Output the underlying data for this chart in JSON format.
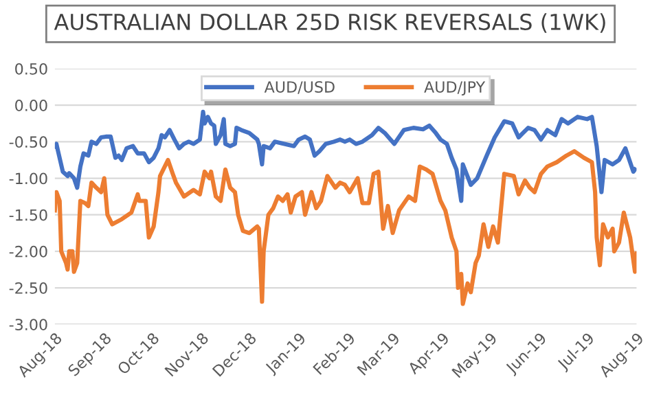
{
  "chart_data": {
    "type": "line",
    "title": "AUSTRALIAN DOLLAR 25D RISK REVERSALS (1WK)",
    "series": [
      {
        "name": "AUD/USD",
        "color": "#4472c4",
        "x": [
          "2018-08-01",
          "2018-08-02",
          "2018-08-03",
          "2018-08-06",
          "2018-08-09",
          "2018-08-10",
          "2018-08-13",
          "2018-08-15",
          "2018-08-17",
          "2018-08-19",
          "2018-08-22",
          "2018-08-24",
          "2018-08-27",
          "2018-08-30",
          "2018-09-02",
          "2018-09-05",
          "2018-09-08",
          "2018-09-10",
          "2018-09-12",
          "2018-09-15",
          "2018-09-19",
          "2018-09-22",
          "2018-09-26",
          "2018-09-29",
          "2018-10-02",
          "2018-10-05",
          "2018-10-07",
          "2018-10-09",
          "2018-10-12",
          "2018-10-15",
          "2018-10-18",
          "2018-10-21",
          "2018-10-24",
          "2018-10-27",
          "2018-10-31",
          "2018-11-02",
          "2018-11-03",
          "2018-11-05",
          "2018-11-07",
          "2018-11-09",
          "2018-11-10",
          "2018-11-13",
          "2018-11-15",
          "2018-11-16",
          "2018-11-19",
          "2018-11-22",
          "2018-11-23",
          "2018-11-26",
          "2018-12-01",
          "2018-12-06",
          "2018-12-07",
          "2018-12-09",
          "2018-12-10",
          "2018-12-14",
          "2018-12-17",
          "2018-12-23",
          "2018-12-29",
          "2019-01-01",
          "2019-01-05",
          "2019-01-08",
          "2019-01-11",
          "2019-01-14",
          "2019-01-18",
          "2019-01-23",
          "2019-01-27",
          "2019-01-30",
          "2019-02-02",
          "2019-02-06",
          "2019-02-10",
          "2019-02-16",
          "2019-02-20",
          "2019-02-24",
          "2019-03-02",
          "2019-03-08",
          "2019-03-14",
          "2019-03-20",
          "2019-03-24",
          "2019-03-28",
          "2019-03-31",
          "2019-04-04",
          "2019-04-07",
          "2019-04-10",
          "2019-04-13",
          "2019-04-14",
          "2019-04-19",
          "2019-04-23",
          "2019-04-29",
          "2019-05-04",
          "2019-05-10",
          "2019-05-15",
          "2019-05-19",
          "2019-05-25",
          "2019-05-29",
          "2019-06-02",
          "2019-06-06",
          "2019-06-11",
          "2019-06-15",
          "2019-06-19",
          "2019-06-25",
          "2019-07-01",
          "2019-07-04",
          "2019-07-07",
          "2019-07-10",
          "2019-07-12",
          "2019-07-17",
          "2019-07-21",
          "2019-07-25",
          "2019-07-30",
          "2019-07-31"
        ],
        "values": [
          -0.56,
          -0.53,
          -0.63,
          -0.91,
          -0.97,
          -0.93,
          -1.0,
          -1.13,
          -0.84,
          -0.66,
          -0.69,
          -0.5,
          -0.53,
          -0.44,
          -0.43,
          -0.43,
          -0.72,
          -0.69,
          -0.75,
          -0.59,
          -0.56,
          -0.66,
          -0.66,
          -0.78,
          -0.72,
          -0.59,
          -0.41,
          -0.44,
          -0.34,
          -0.47,
          -0.59,
          -0.53,
          -0.5,
          -0.53,
          -0.47,
          -0.09,
          -0.25,
          -0.16,
          -0.25,
          -0.28,
          -0.53,
          -0.41,
          -0.19,
          -0.53,
          -0.56,
          -0.53,
          -0.31,
          -0.34,
          -0.38,
          -0.47,
          -0.53,
          -0.81,
          -0.56,
          -0.59,
          -0.5,
          -0.53,
          -0.56,
          -0.47,
          -0.43,
          -0.47,
          -0.69,
          -0.63,
          -0.53,
          -0.5,
          -0.47,
          -0.5,
          -0.47,
          -0.53,
          -0.5,
          -0.41,
          -0.31,
          -0.38,
          -0.53,
          -0.34,
          -0.31,
          -0.33,
          -0.28,
          -0.38,
          -0.47,
          -0.53,
          -0.72,
          -0.88,
          -1.31,
          -0.81,
          -1.09,
          -1.0,
          -0.69,
          -0.44,
          -0.22,
          -0.25,
          -0.44,
          -0.31,
          -0.34,
          -0.47,
          -0.34,
          -0.41,
          -0.19,
          -0.25,
          -0.16,
          -0.19,
          -0.16,
          -0.56,
          -1.19,
          -0.75,
          -0.81,
          -0.75,
          -0.59,
          -0.91,
          -0.88
        ]
      },
      {
        "name": "AUD/JPY",
        "color": "#ed7d31",
        "x": [
          "2018-08-01",
          "2018-08-02",
          "2018-08-04",
          "2018-08-05",
          "2018-08-08",
          "2018-08-09",
          "2018-08-10",
          "2018-08-12",
          "2018-08-13",
          "2018-08-15",
          "2018-08-17",
          "2018-08-20",
          "2018-08-22",
          "2018-08-24",
          "2018-08-27",
          "2018-08-30",
          "2018-09-01",
          "2018-09-03",
          "2018-09-06",
          "2018-09-12",
          "2018-09-18",
          "2018-09-22",
          "2018-09-23",
          "2018-09-27",
          "2018-09-29",
          "2018-10-02",
          "2018-10-05",
          "2018-10-06",
          "2018-10-11",
          "2018-10-14",
          "2018-10-16",
          "2018-10-21",
          "2018-10-27",
          "2018-10-31",
          "2018-11-03",
          "2018-11-06",
          "2018-11-07",
          "2018-11-10",
          "2018-11-13",
          "2018-11-16",
          "2018-11-19",
          "2018-11-22",
          "2018-11-24",
          "2018-11-27",
          "2018-12-01",
          "2018-12-06",
          "2018-12-07",
          "2018-12-09",
          "2018-12-10",
          "2018-12-13",
          "2018-12-16",
          "2018-12-19",
          "2018-12-22",
          "2018-12-25",
          "2018-12-27",
          "2018-12-30",
          "2019-01-03",
          "2019-01-05",
          "2019-01-09",
          "2019-01-12",
          "2019-01-15",
          "2019-01-19",
          "2019-01-24",
          "2019-01-27",
          "2019-01-30",
          "2019-02-02",
          "2019-02-07",
          "2019-02-10",
          "2019-02-14",
          "2019-02-17",
          "2019-02-20",
          "2019-02-23",
          "2019-02-26",
          "2019-03-01",
          "2019-03-05",
          "2019-03-11",
          "2019-03-15",
          "2019-03-18",
          "2019-03-22",
          "2019-03-26",
          "2019-03-31",
          "2019-04-03",
          "2019-04-07",
          "2019-04-10",
          "2019-04-11",
          "2019-04-13",
          "2019-04-14",
          "2019-04-17",
          "2019-04-19",
          "2019-04-22",
          "2019-04-24",
          "2019-04-27",
          "2019-04-30",
          "2019-05-03",
          "2019-05-06",
          "2019-05-10",
          "2019-05-16",
          "2019-05-19",
          "2019-05-23",
          "2019-05-26",
          "2019-05-29",
          "2019-06-02",
          "2019-06-06",
          "2019-06-12",
          "2019-06-18",
          "2019-06-23",
          "2019-06-29",
          "2019-07-04",
          "2019-07-06",
          "2019-07-07",
          "2019-07-09",
          "2019-07-11",
          "2019-07-14",
          "2019-07-17",
          "2019-07-18",
          "2019-07-21",
          "2019-07-24",
          "2019-07-28",
          "2019-07-31",
          "2019-08-01"
        ],
        "values": [
          -1.44,
          -1.19,
          -1.31,
          -2.0,
          -2.16,
          -2.25,
          -2.0,
          -2.0,
          -2.28,
          -2.16,
          -1.31,
          -1.34,
          -1.38,
          -1.06,
          -1.13,
          -1.19,
          -1.0,
          -1.5,
          -1.63,
          -1.56,
          -1.47,
          -1.22,
          -1.31,
          -1.31,
          -1.81,
          -1.66,
          -1.19,
          -0.97,
          -0.75,
          -0.94,
          -1.06,
          -1.25,
          -1.16,
          -1.22,
          -0.91,
          -1.0,
          -0.91,
          -1.25,
          -1.31,
          -0.88,
          -1.13,
          -1.19,
          -1.5,
          -1.72,
          -1.75,
          -1.66,
          -1.69,
          -2.69,
          -2.0,
          -1.5,
          -1.41,
          -1.25,
          -1.31,
          -1.22,
          -1.47,
          -1.25,
          -1.19,
          -1.5,
          -1.19,
          -1.41,
          -1.31,
          -0.97,
          -1.13,
          -1.06,
          -1.09,
          -1.19,
          -1.0,
          -1.34,
          -1.34,
          -0.94,
          -0.91,
          -1.69,
          -1.38,
          -1.75,
          -1.44,
          -1.25,
          -1.31,
          -0.84,
          -0.88,
          -0.94,
          -1.31,
          -1.44,
          -1.81,
          -2.0,
          -2.5,
          -2.31,
          -2.72,
          -2.44,
          -2.56,
          -2.16,
          -2.06,
          -1.63,
          -1.94,
          -1.66,
          -1.88,
          -0.94,
          -0.97,
          -1.22,
          -1.03,
          -1.13,
          -1.19,
          -0.94,
          -0.84,
          -0.78,
          -0.69,
          -0.63,
          -0.72,
          -0.78,
          -1.19,
          -1.81,
          -2.19,
          -1.63,
          -1.81,
          -1.69,
          -2.0,
          -1.88,
          -1.47,
          -1.81,
          -2.28,
          -2.03
        ]
      }
    ],
    "xlim": [
      "2018-08-01",
      "2019-08-01"
    ],
    "xticks": [
      {
        "value": "2018-08-01",
        "label": "Aug-18"
      },
      {
        "value": "2018-09-01",
        "label": "Sep-18"
      },
      {
        "value": "2018-10-01",
        "label": "Oct-18"
      },
      {
        "value": "2018-11-01",
        "label": "Nov-18"
      },
      {
        "value": "2018-12-01",
        "label": "Dec-18"
      },
      {
        "value": "2019-01-01",
        "label": "Jan-19"
      },
      {
        "value": "2019-02-01",
        "label": "Feb-19"
      },
      {
        "value": "2019-03-01",
        "label": "Mar-19"
      },
      {
        "value": "2019-04-01",
        "label": "Apr-19"
      },
      {
        "value": "2019-05-01",
        "label": "May-19"
      },
      {
        "value": "2019-06-01",
        "label": "Jun-19"
      },
      {
        "value": "2019-07-01",
        "label": "Jul-19"
      },
      {
        "value": "2019-08-01",
        "label": "Aug-19"
      }
    ],
    "ylim": [
      -3,
      0.5
    ],
    "yticks": [
      {
        "value": 0.5,
        "label": "0.50"
      },
      {
        "value": 0,
        "label": "0.00"
      },
      {
        "value": -0.5,
        "label": "-0.50"
      },
      {
        "value": -1,
        "label": "-1.00"
      },
      {
        "value": -1.5,
        "label": "-1.50"
      },
      {
        "value": -2,
        "label": "-2.00"
      },
      {
        "value": -2.5,
        "label": "-2.50"
      },
      {
        "value": -3,
        "label": "-3.00"
      }
    ],
    "grid": "y",
    "legend": "top",
    "marker": "none",
    "line_style": "solid"
  }
}
